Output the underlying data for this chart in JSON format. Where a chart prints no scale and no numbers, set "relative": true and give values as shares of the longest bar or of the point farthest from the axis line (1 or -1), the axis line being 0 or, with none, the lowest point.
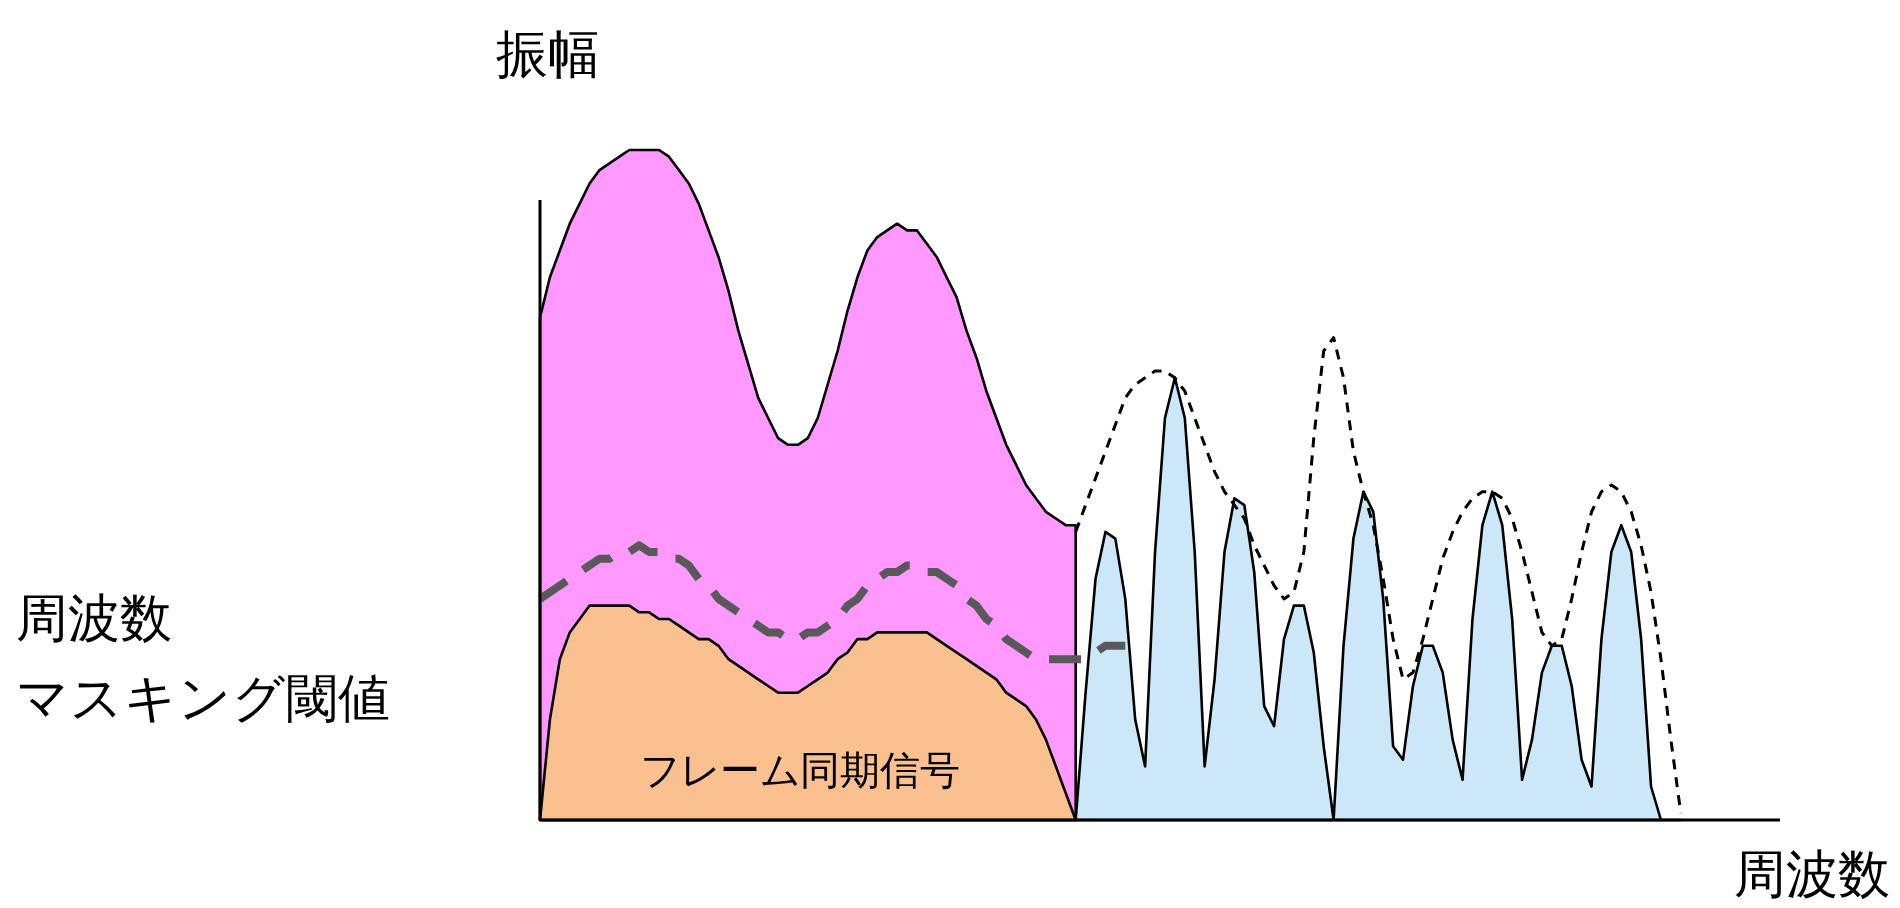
{
  "chart_data": {
    "type": "area",
    "relative": true,
    "ylabel": "振幅",
    "xlabel": "周波数",
    "categories": [
      null,
      null,
      null,
      null,
      null,
      null,
      null,
      null,
      null,
      null,
      null,
      null,
      null,
      null,
      null,
      null,
      null,
      null,
      null,
      null,
      null,
      null,
      null,
      null,
      null,
      null,
      null,
      null,
      null,
      null,
      null,
      null,
      null,
      null,
      null,
      null,
      null,
      null,
      null,
      null,
      null,
      null,
      null,
      null,
      null,
      null,
      null,
      null,
      null,
      null,
      null,
      null,
      null,
      null,
      null,
      null,
      null,
      null,
      null,
      null,
      null,
      null,
      null,
      null,
      null,
      null,
      null,
      null,
      null,
      null,
      null,
      null,
      null,
      null,
      null,
      null,
      null,
      null,
      null,
      null,
      null,
      null,
      null,
      null,
      null,
      null,
      null,
      null,
      null,
      null,
      null,
      null,
      null,
      null,
      null,
      null,
      null,
      null,
      null,
      null,
      null,
      null,
      null,
      null,
      null,
      null,
      null,
      null,
      null,
      null,
      null,
      null,
      null,
      null,
      null,
      null,
      null,
      null,
      null,
      null,
      null,
      null,
      null,
      null,
      null
    ],
    "series": [
      {
        "color": "#ff99ff",
        "values": [
          0.75,
          0.81,
          0.85,
          0.89,
          0.92,
          0.95,
          0.97,
          0.98,
          0.99,
          1.0,
          1.0,
          1.0,
          1.0,
          0.99,
          0.97,
          0.95,
          0.92,
          0.88,
          0.84,
          0.79,
          0.73,
          0.68,
          0.63,
          0.6,
          0.57,
          0.56,
          0.56,
          0.57,
          0.6,
          0.65,
          0.7,
          0.76,
          0.81,
          0.85,
          0.87,
          0.88,
          0.89,
          0.88,
          0.88,
          0.86,
          0.84,
          0.81,
          0.78,
          0.73,
          0.69,
          0.64,
          0.6,
          0.56,
          0.53,
          0.5,
          0.48,
          0.46,
          0.45,
          0.44,
          0.44,
          null,
          null,
          null,
          null,
          null,
          null,
          null,
          null,
          null,
          null,
          null,
          null,
          null,
          null,
          null,
          null,
          null,
          null,
          null,
          null,
          null,
          null,
          null,
          null,
          null,
          null,
          null,
          null,
          null,
          null,
          null,
          null,
          null,
          null,
          null,
          null,
          null,
          null,
          null,
          null,
          null,
          null,
          null,
          null,
          null,
          null,
          null,
          null,
          null,
          null,
          null,
          null,
          null,
          null,
          null,
          null,
          null,
          null,
          null,
          null,
          null,
          null,
          null,
          null,
          null,
          null,
          null,
          null,
          null,
          null
        ]
      },
      {
        "name": "フレーム同期信号",
        "color": "#fac090",
        "values": [
          0,
          0.15,
          0.24,
          0.28,
          0.3,
          0.32,
          0.32,
          0.32,
          0.32,
          0.32,
          0.31,
          0.31,
          0.3,
          0.3,
          0.29,
          0.28,
          0.27,
          0.27,
          0.26,
          0.24,
          0.23,
          0.22,
          0.21,
          0.2,
          0.19,
          0.19,
          0.19,
          0.2,
          0.21,
          0.22,
          0.24,
          0.25,
          0.27,
          0.27,
          0.28,
          0.28,
          0.28,
          0.28,
          0.28,
          0.28,
          0.27,
          0.26,
          0.25,
          0.24,
          0.23,
          0.22,
          0.21,
          0.19,
          0.18,
          0.17,
          0.15,
          0.12,
          0.08,
          0.04,
          0,
          null,
          null,
          null,
          null,
          null,
          null,
          null,
          null,
          null,
          null,
          null,
          null,
          null,
          null,
          null,
          null,
          null,
          null,
          null,
          null,
          null,
          null,
          null,
          null,
          null,
          null,
          null,
          null,
          null,
          null,
          null,
          null,
          null,
          null,
          null,
          null,
          null,
          null,
          null,
          null,
          null,
          null,
          null,
          null,
          null,
          null,
          null,
          null,
          null,
          null,
          null,
          null,
          null,
          null,
          null,
          null,
          null,
          null,
          null,
          null,
          null,
          null,
          null,
          null,
          null,
          null,
          null,
          null,
          null,
          null
        ]
      },
      {
        "color": "#cce8f8",
        "values": [
          null,
          null,
          null,
          null,
          null,
          null,
          null,
          null,
          null,
          null,
          null,
          null,
          null,
          null,
          null,
          null,
          null,
          null,
          null,
          null,
          null,
          null,
          null,
          null,
          null,
          null,
          null,
          null,
          null,
          null,
          null,
          null,
          null,
          null,
          null,
          null,
          null,
          null,
          null,
          null,
          null,
          null,
          null,
          null,
          null,
          null,
          null,
          null,
          null,
          null,
          null,
          null,
          null,
          null,
          0,
          0.19,
          0.36,
          0.43,
          0.42,
          0.33,
          0.15,
          0.08,
          0.4,
          0.6,
          0.66,
          0.6,
          0.4,
          0.08,
          0.21,
          0.4,
          0.48,
          0.47,
          0.37,
          0.17,
          0.14,
          0.27,
          0.32,
          0.32,
          0.25,
          0.11,
          0,
          0.26,
          0.42,
          0.49,
          0.46,
          0.33,
          0.11,
          0.09,
          0.2,
          0.26,
          0.26,
          0.22,
          0.12,
          0.06,
          0.3,
          0.44,
          0.49,
          0.44,
          0.3,
          0.06,
          0.12,
          0.22,
          0.26,
          0.26,
          0.2,
          0.09,
          0.05,
          0.27,
          0.4,
          0.44,
          0.4,
          0.27,
          0.05,
          0,
          0,
          0,
          null,
          null,
          null,
          null,
          null,
          null,
          null,
          null,
          null
        ]
      },
      {
        "type": "line",
        "name": "周波数マスキング閾値",
        "color": "#595959",
        "line_style": "dashed",
        "values": [
          0.33,
          0.34,
          0.35,
          0.36,
          0.37,
          0.38,
          0.39,
          0.39,
          0.4,
          0.4,
          0.41,
          0.4,
          0.4,
          0.39,
          0.39,
          0.38,
          0.36,
          0.35,
          0.33,
          0.32,
          0.31,
          0.3,
          0.29,
          0.28,
          0.28,
          0.27,
          0.27,
          0.28,
          0.28,
          0.29,
          0.3,
          0.32,
          0.33,
          0.35,
          0.36,
          0.37,
          0.37,
          0.38,
          0.38,
          0.37,
          0.37,
          0.36,
          0.35,
          0.33,
          0.32,
          0.3,
          0.29,
          0.27,
          0.26,
          0.25,
          0.24,
          0.24,
          0.24,
          0.24,
          0.24,
          0.24,
          0.25,
          0.26,
          0.26,
          0.26,
          null,
          null,
          null,
          null,
          null,
          null,
          null,
          null,
          null,
          null,
          null,
          null,
          null,
          null,
          null,
          null,
          null,
          null,
          null,
          null,
          null,
          null,
          null,
          null,
          null,
          null,
          null,
          null,
          null,
          null,
          null,
          null,
          null,
          null,
          null,
          null,
          null,
          null,
          null,
          null,
          null,
          null,
          null,
          null,
          null,
          null,
          null,
          null,
          null,
          null,
          null,
          null,
          null,
          null,
          null,
          null,
          null,
          null,
          null,
          null,
          null,
          null,
          null,
          null,
          null
        ]
      },
      {
        "type": "line",
        "color": "#000000",
        "line_style": "dashed",
        "values": [
          null,
          null,
          null,
          null,
          null,
          null,
          null,
          null,
          null,
          null,
          null,
          null,
          null,
          null,
          null,
          null,
          null,
          null,
          null,
          null,
          null,
          null,
          null,
          null,
          null,
          null,
          null,
          null,
          null,
          null,
          null,
          null,
          null,
          null,
          null,
          null,
          null,
          null,
          null,
          null,
          null,
          null,
          null,
          null,
          null,
          null,
          null,
          null,
          null,
          null,
          null,
          null,
          null,
          null,
          0.43,
          0.47,
          0.51,
          0.55,
          0.59,
          0.63,
          0.65,
          0.66,
          0.67,
          0.67,
          0.66,
          0.64,
          0.6,
          0.56,
          0.52,
          0.49,
          0.47,
          0.45,
          0.41,
          0.38,
          0.35,
          0.33,
          0.34,
          0.4,
          0.57,
          0.7,
          0.72,
          0.66,
          0.55,
          0.49,
          0.44,
          0.36,
          0.27,
          0.21,
          0.22,
          0.27,
          0.33,
          0.39,
          0.43,
          0.46,
          0.48,
          0.49,
          0.49,
          0.48,
          0.45,
          0.4,
          0.34,
          0.28,
          0.26,
          0.27,
          0.33,
          0.4,
          0.46,
          0.49,
          0.5,
          0.49,
          0.46,
          0.41,
          0.34,
          0.24,
          0.12,
          0.01,
          null,
          null,
          null,
          null,
          null,
          null,
          null,
          null,
          null
        ]
      }
    ]
  }
}
